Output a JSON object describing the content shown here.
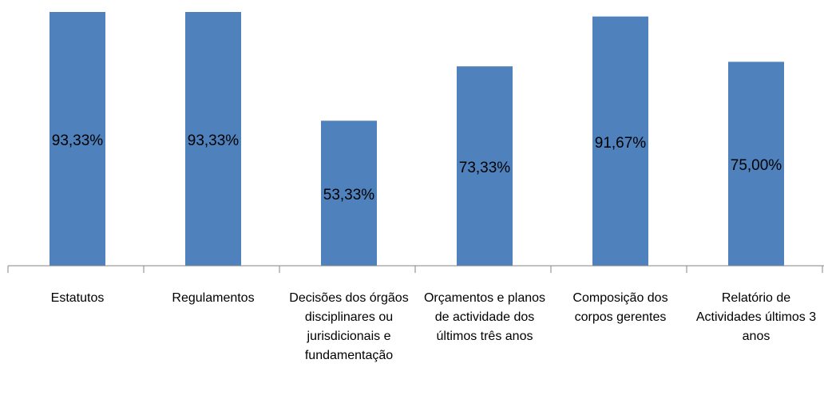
{
  "chart_data": {
    "type": "bar",
    "categories": [
      "Estatutos",
      "Regulamentos",
      "Decisões dos órgãos disciplinares ou jurisdicionais e fundamentação",
      "Orçamentos e planos de actividade dos últimos três anos",
      "Composição dos corpos gerentes",
      "Relatório de Actividades últimos 3 anos"
    ],
    "values": [
      93.33,
      93.33,
      53.33,
      73.33,
      91.67,
      75.0
    ],
    "value_labels": [
      "93,33%",
      "93,33%",
      "53,33%",
      "73,33%",
      "91,67%",
      "75,00%"
    ],
    "color": "#4f81bd"
  }
}
